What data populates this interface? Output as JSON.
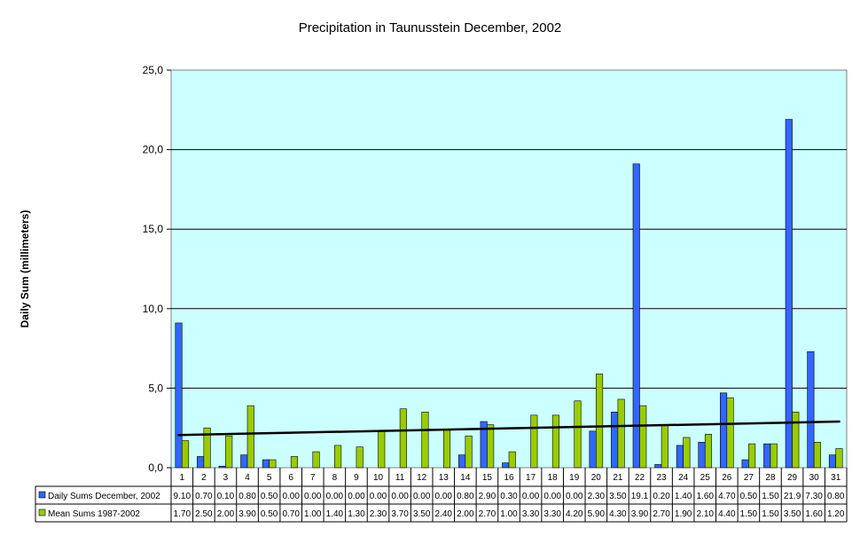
{
  "chart_data": {
    "type": "bar",
    "title": "Precipitation in Taunusstein December, 2002",
    "xlabel": "",
    "ylabel": "Daily Sum (millimeters)",
    "ylim": [
      0,
      25
    ],
    "yticks": [
      "0,0",
      "5,0",
      "10,0",
      "15,0",
      "20,0",
      "25,0"
    ],
    "ytick_values": [
      0,
      5,
      10,
      15,
      20,
      25
    ],
    "grid": true,
    "legend": "data table (bottom)",
    "plot_background": "#CCFFFF",
    "categories": [
      "1",
      "2",
      "3",
      "4",
      "5",
      "6",
      "7",
      "8",
      "9",
      "10",
      "11",
      "12",
      "13",
      "14",
      "15",
      "16",
      "17",
      "18",
      "19",
      "20",
      "21",
      "22",
      "23",
      "24",
      "25",
      "26",
      "27",
      "28",
      "29",
      "30",
      "31"
    ],
    "series": [
      {
        "name": "Daily Sums December, 2002",
        "color": "#3366FF",
        "values": [
          9.1,
          0.7,
          0.1,
          0.8,
          0.5,
          0.0,
          0.0,
          0.0,
          0.0,
          0.0,
          0.0,
          0.0,
          0.0,
          0.8,
          2.9,
          0.3,
          0.0,
          0.0,
          0.0,
          2.3,
          3.5,
          19.1,
          0.2,
          1.4,
          1.6,
          4.7,
          0.5,
          1.5,
          21.9,
          7.3,
          0.8
        ],
        "labels": [
          "9.10",
          "0.70",
          "0.10",
          "0.80",
          "0.50",
          "0.00",
          "0.00",
          "0.00",
          "0.00",
          "0.00",
          "0.00",
          "0.00",
          "0.00",
          "0.80",
          "2.90",
          "0.30",
          "0.00",
          "0.00",
          "0.00",
          "2.30",
          "3.50",
          "19.1",
          "0.20",
          "1.40",
          "1.60",
          "4.70",
          "0.50",
          "1.50",
          "21.9",
          "7.30",
          "0.80"
        ]
      },
      {
        "name": "Mean Sums 1987-2002",
        "color": "#99CC00",
        "values": [
          1.7,
          2.5,
          2.0,
          3.9,
          0.5,
          0.7,
          1.0,
          1.4,
          1.3,
          2.3,
          3.7,
          3.5,
          2.4,
          2.0,
          2.7,
          1.0,
          3.3,
          3.3,
          4.2,
          5.9,
          4.3,
          3.9,
          2.7,
          1.9,
          2.1,
          4.4,
          1.5,
          1.5,
          3.5,
          1.6,
          1.2
        ],
        "labels": [
          "1.70",
          "2.50",
          "2.00",
          "3.90",
          "0.50",
          "0.70",
          "1.00",
          "1.40",
          "1.30",
          "2.30",
          "3.70",
          "3.50",
          "2.40",
          "2.00",
          "2.70",
          "1.00",
          "3.30",
          "3.30",
          "4.20",
          "5.90",
          "4.30",
          "3.90",
          "2.70",
          "1.90",
          "2.10",
          "4.40",
          "1.50",
          "1.50",
          "3.50",
          "1.60",
          "1.20"
        ]
      }
    ],
    "trendline": {
      "color": "#000000",
      "start": 2.05,
      "end": 2.9
    }
  }
}
